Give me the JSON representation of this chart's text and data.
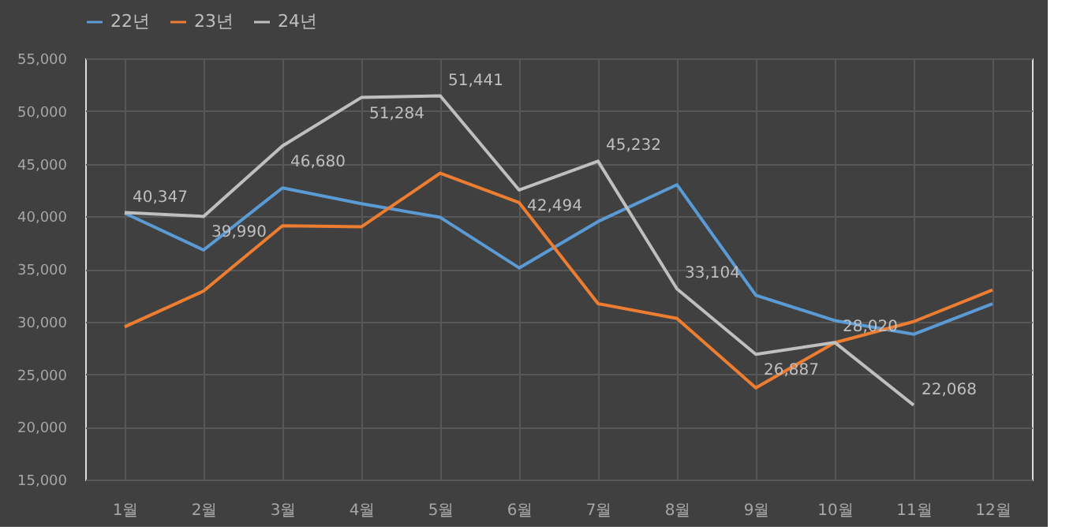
{
  "chart_data": {
    "type": "line",
    "categories": [
      "1월",
      "2월",
      "3월",
      "4월",
      "5월",
      "6월",
      "7월",
      "8월",
      "9월",
      "10월",
      "11월",
      "12월"
    ],
    "series": [
      {
        "name": "22년",
        "color": "#5b9bd5",
        "values": [
          40300,
          36800,
          42700,
          41200,
          39900,
          35100,
          39500,
          43000,
          32500,
          30100,
          28800,
          31700
        ]
      },
      {
        "name": "23년",
        "color": "#ed7d31",
        "values": [
          29500,
          32900,
          39100,
          39000,
          44100,
          41300,
          31700,
          30300,
          23700,
          28000,
          30000,
          33000
        ]
      },
      {
        "name": "24년",
        "color": "#bfbfbf",
        "values": [
          40347,
          39990,
          46680,
          51284,
          51441,
          42494,
          45232,
          33104,
          26887,
          28020,
          22068,
          null
        ],
        "value_labels": [
          "40,347",
          "39,990",
          "46,680",
          "51,284",
          "51,441",
          "42,494",
          "45,232",
          "33,104",
          "26,887",
          "28,020",
          "22,068",
          null
        ]
      }
    ],
    "ylim": [
      15000,
      55000
    ],
    "yticks": [
      {
        "value": 15000,
        "label": "15,000"
      },
      {
        "value": 20000,
        "label": "20,000"
      },
      {
        "value": 25000,
        "label": "25,000"
      },
      {
        "value": 30000,
        "label": "30,000"
      },
      {
        "value": 35000,
        "label": "35,000"
      },
      {
        "value": 40000,
        "label": "40,000"
      },
      {
        "value": 45000,
        "label": "45,000"
      },
      {
        "value": 50000,
        "label": "50,000"
      },
      {
        "value": 55000,
        "label": "55,000"
      }
    ],
    "grid": true,
    "legend": "top",
    "marker": "none",
    "line_style": "solid"
  }
}
